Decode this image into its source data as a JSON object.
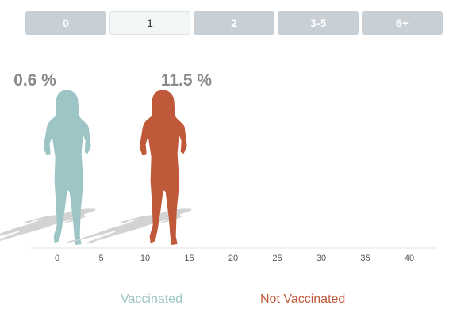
{
  "tabs": {
    "items": [
      "0",
      "1",
      "2",
      "3-5",
      "6+"
    ],
    "selected_index": 1
  },
  "colors": {
    "vaccinated": "#9dc5c5",
    "not_vaccinated": "#c0593a",
    "tab_bg": "#c9d0d5",
    "tab_selected_bg": "#f2f6f7",
    "axis": "#555555",
    "value_label": "#8a8a8a",
    "shadow": "#cfcfcf"
  },
  "chart_data": {
    "type": "bar",
    "x_axis": {
      "min": -3,
      "max": 43,
      "ticks": [
        0,
        5,
        10,
        15,
        20,
        25,
        30,
        35,
        40
      ]
    },
    "values": [
      0.6,
      11.5
    ],
    "value_labels": [
      "0.6 %",
      "11.5 %"
    ],
    "legend": [
      "Vaccinated",
      "Not Vaccinated"
    ],
    "legend_position": "bottom"
  }
}
